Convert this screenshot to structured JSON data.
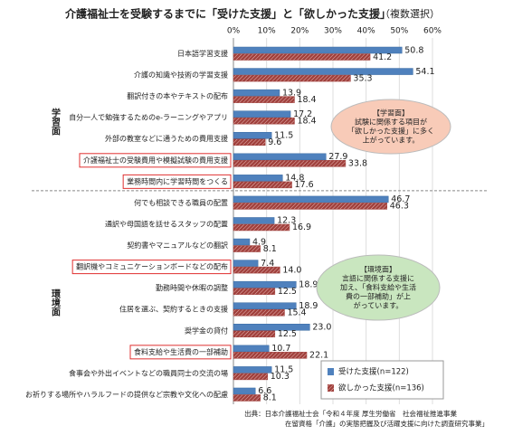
{
  "chart_data": {
    "type": "bar",
    "orientation": "horizontal",
    "title": "介護福祉士を受験するまでに「受けた支援」と「欲しかった支援」",
    "subtitle": "（複数選択）",
    "categories": [
      "日本語学習支援",
      "介護の知識や技術の学習支援",
      "翻訳付きの本やテキストの配布",
      "自分一人で勉強するためのe-ラーニングやアプリ",
      "外部の教室などに通うための費用支援",
      "介護福祉士の受験費用や模擬試験の費用支援",
      "業務時間内に学習時間をつくる",
      "何でも相談できる職員の配置",
      "通訳や母国語を話せるスタッフの配置",
      "契約書やマニュアルなどの翻訳",
      "翻訳機やコミュニケーションボードなどの配布",
      "勤務時間や休暇の調整",
      "住居を選ぶ、契約するときの支援",
      "奨学金の貸付",
      "食料支給や生活費の一部補助",
      "食事会や外出イベントなどの職員同士の交流の場",
      "お祈りする場所やハラルフードの提供など宗教や文化への配慮"
    ],
    "highlighted": [
      5,
      6,
      10,
      14
    ],
    "series": [
      {
        "name": "受けた支援(n=122)",
        "color": "#4f81bd",
        "values": [
          50.8,
          54.1,
          13.9,
          17.2,
          11.5,
          27.9,
          14.8,
          46.7,
          12.3,
          4.9,
          7.4,
          18.9,
          18.9,
          23.0,
          10.7,
          11.5,
          6.6
        ],
        "value_labels": [
          "50.8",
          "54.1",
          "13.9",
          "17.2",
          "11.5",
          "27.9",
          "14.8",
          "46.7",
          "12.3",
          "4.9",
          "7.4",
          "18.9",
          "18.9",
          "23.0",
          "10.7",
          "11.5",
          "6.6"
        ]
      },
      {
        "name": "欲しかった支援(n=136)",
        "color": "#a0403c",
        "values": [
          41.2,
          35.3,
          18.4,
          18.4,
          9.6,
          33.8,
          17.6,
          46.3,
          16.9,
          8.1,
          14.0,
          12.5,
          15.4,
          12.5,
          22.1,
          10.3,
          8.1
        ],
        "value_labels": [
          "41.2",
          "35.3",
          "18.4",
          "18.4",
          "9.6",
          "33.8",
          "17.6",
          "46.3",
          "16.9",
          "8.1",
          "14.0",
          "12.5",
          "15.4",
          "12.5",
          "22.1",
          "10.3",
          "8.1"
        ]
      }
    ],
    "xlim": [
      0,
      60
    ],
    "xticks": [
      {
        "value": 0,
        "label": "0%"
      },
      {
        "value": 10,
        "label": "10%"
      },
      {
        "value": 20,
        "label": "20%"
      },
      {
        "value": 30,
        "label": "30%"
      },
      {
        "value": 40,
        "label": "40%"
      },
      {
        "value": 50,
        "label": "50%"
      },
      {
        "value": 60,
        "label": "60%"
      }
    ],
    "groups": [
      {
        "label": "学習面",
        "start": 0,
        "end": 6
      },
      {
        "label": "環境面",
        "start": 7,
        "end": 16
      }
    ],
    "callouts": [
      {
        "lines": [
          "【学習面】",
          "試験に関係する項目が",
          "「欲しかった支援」に多く",
          "上がっています。"
        ],
        "color": "#f8cbb8"
      },
      {
        "lines": [
          "【環境面】",
          "言語に関係する支援に",
          "加え、「食料支給や生活",
          "費の一部補助」が上",
          "がっています。"
        ],
        "color": "#c9e6bf"
      }
    ],
    "source": [
      "出典：日本介護福祉士会「令和４年度 厚生労働省　社会福祉推進事業",
      "在留資格「介護」の実態把握及び活躍支援に向けた調査研究事業」"
    ]
  }
}
